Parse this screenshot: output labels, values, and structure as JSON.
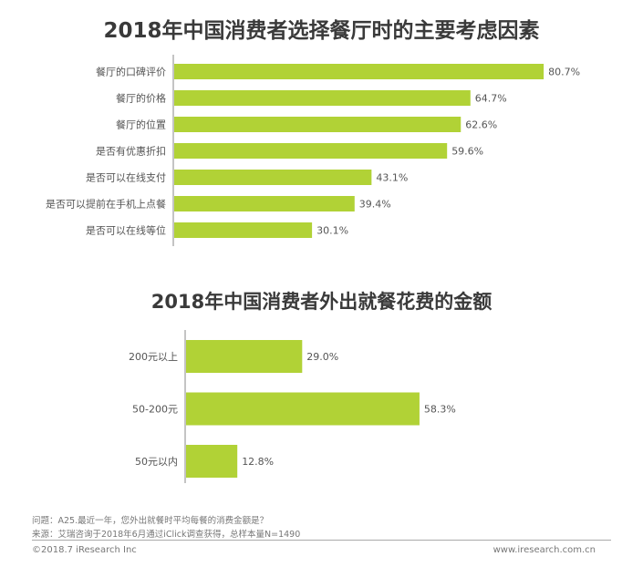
{
  "chart_data": [
    {
      "type": "bar",
      "orientation": "horizontal",
      "title": "2018年中国消费者选择餐厅时的主要考虑因素",
      "categories": [
        "餐厅的口碑评价",
        "餐厅的价格",
        "餐厅的位置",
        "是否有优惠折扣",
        "是否可以在线支付",
        "是否可以提前在手机上点餐",
        "是否可以在线等位"
      ],
      "values": [
        80.7,
        64.7,
        62.6,
        59.6,
        43.1,
        39.4,
        30.1
      ],
      "value_labels": [
        "80.7%",
        "64.7%",
        "62.6%",
        "59.6%",
        "43.1%",
        "39.4%",
        "30.1%"
      ],
      "unit": "%",
      "color": "#b1d236"
    },
    {
      "type": "bar",
      "orientation": "horizontal",
      "title": "2018年中国消费者外出就餐花费的金额",
      "categories": [
        "200元以上",
        "50-200元",
        "50元以内"
      ],
      "values": [
        29.0,
        58.3,
        12.8
      ],
      "value_labels": [
        "29.0%",
        "58.3%",
        "12.8%"
      ],
      "unit": "%",
      "color": "#b1d236"
    }
  ],
  "footer": {
    "question": "问题：A25.最近一年，您外出就餐时平均每餐的消费金额是？",
    "source": "来源：艾瑞咨询于2018年6月通过iClick调查获得，总样本量N=1490",
    "copyright": "©2018.7 iResearch Inc",
    "url": "www.iresearch.com.cn"
  }
}
